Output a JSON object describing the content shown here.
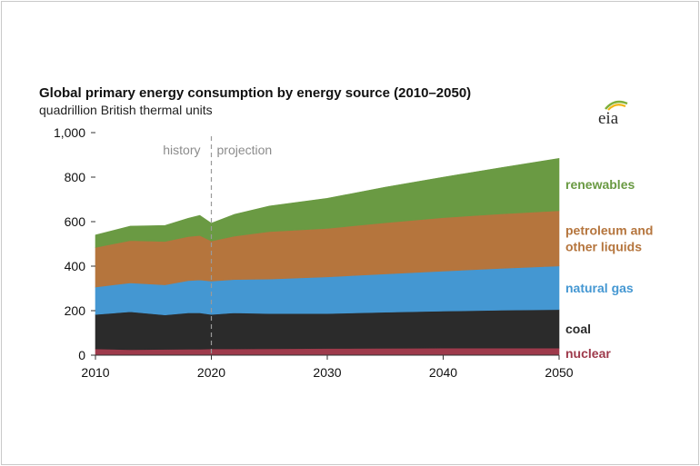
{
  "chart_data": {
    "type": "area",
    "stacked": true,
    "title": "Global primary energy consumption by energy source (2010–2050)",
    "subtitle": "quadrillion British thermal units",
    "xlabel": "",
    "ylabel": "",
    "xlim": [
      2010,
      2050
    ],
    "ylim": [
      0,
      1000
    ],
    "x_ticks": [
      2010,
      2020,
      2030,
      2040,
      2050
    ],
    "y_ticks": [
      0,
      200,
      400,
      600,
      800,
      1000
    ],
    "y_tick_labels": [
      "0",
      "200",
      "400",
      "600",
      "800",
      "1,000"
    ],
    "grid": false,
    "divider_year": 2020,
    "period_labels": {
      "history": "history",
      "projection": "projection"
    },
    "x": [
      2010,
      2013,
      2016,
      2018,
      2019,
      2020,
      2022,
      2025,
      2030,
      2035,
      2040,
      2045,
      2050
    ],
    "series": [
      {
        "name": "nuclear",
        "color": "#9e3a4b",
        "values": [
          28,
          25,
          26,
          27,
          27,
          28,
          28,
          29,
          30,
          31,
          32,
          32,
          32
        ]
      },
      {
        "name": "coal",
        "color": "#2b2b2b",
        "values": [
          155,
          170,
          155,
          163,
          163,
          155,
          162,
          158,
          157,
          162,
          166,
          170,
          173
        ]
      },
      {
        "name": "natural gas",
        "color": "#4497d2",
        "values": [
          123,
          130,
          135,
          145,
          148,
          150,
          150,
          155,
          165,
          172,
          180,
          188,
          196
        ]
      },
      {
        "name": "petroleum and other liquids",
        "color": "#b5753d",
        "values": [
          178,
          190,
          195,
          198,
          200,
          180,
          195,
          213,
          218,
          230,
          240,
          245,
          248
        ]
      },
      {
        "name": "renewables",
        "color": "#6a9a43",
        "values": [
          56,
          65,
          72,
          82,
          90,
          80,
          98,
          115,
          135,
          160,
          182,
          208,
          235
        ]
      }
    ],
    "legend_placement": "right, inline labels"
  }
}
